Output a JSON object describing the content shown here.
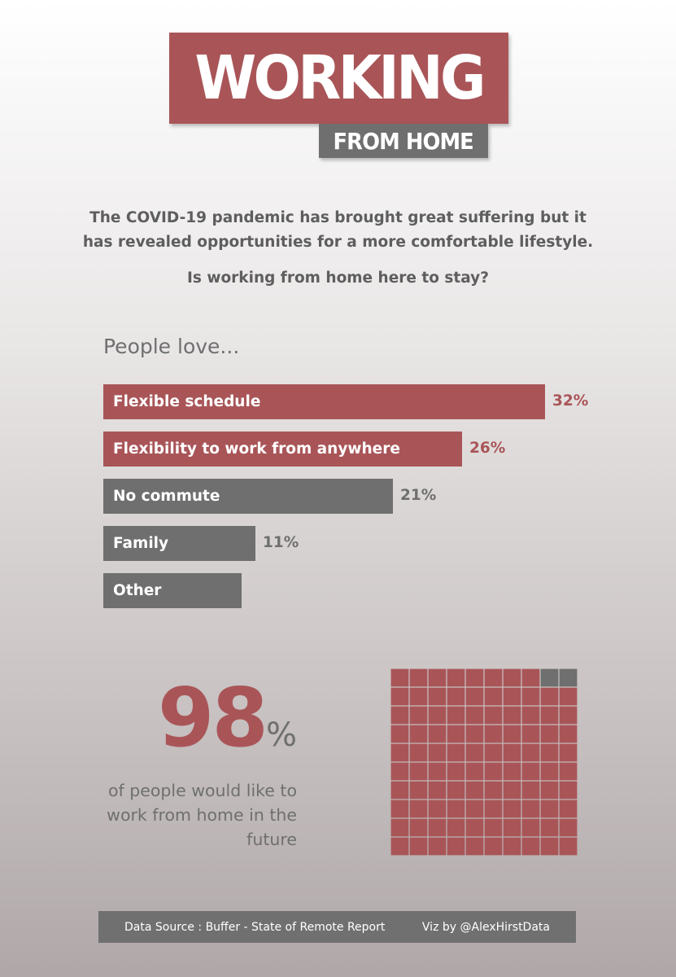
{
  "header": {
    "title": "WORKING",
    "subtitle": "FROM HOME"
  },
  "intro": {
    "text": "The COVID-19 pandemic has brought great suffering but it has revealed opportunities for a more comfortable lifestyle.",
    "question": "Is working from home here to stay?"
  },
  "section_title": "People love...",
  "stat": {
    "value": "98",
    "unit": "%",
    "description": "of people would like to work from home in the future"
  },
  "footer": {
    "source": "Data Source : Buffer - State of Remote Report",
    "credit": "Viz by @AlexHirstData"
  },
  "colors": {
    "highlight": "#a95558",
    "neutral": "#6f6f6f",
    "highlight_text": "#a95558",
    "neutral_text": "#6f6f6f"
  },
  "chart_data": [
    {
      "type": "bar",
      "orientation": "horizontal",
      "title": "People love...",
      "categories": [
        "Flexible schedule",
        "Flexibility to work from anywhere",
        "No commute",
        "Family",
        "Other"
      ],
      "values": [
        32,
        26,
        21,
        11,
        10
      ],
      "value_labels": [
        "32%",
        "26%",
        "21%",
        "11%",
        ""
      ],
      "highlight": [
        true,
        true,
        false,
        false,
        false
      ],
      "xlim": [
        0,
        32
      ],
      "grid": false
    },
    {
      "type": "waffle",
      "rows": 10,
      "columns": 10,
      "filled_percent": 98,
      "unfilled_percent": 2,
      "filled_color": "#a95558",
      "unfilled_color": "#6f6f6f"
    }
  ]
}
